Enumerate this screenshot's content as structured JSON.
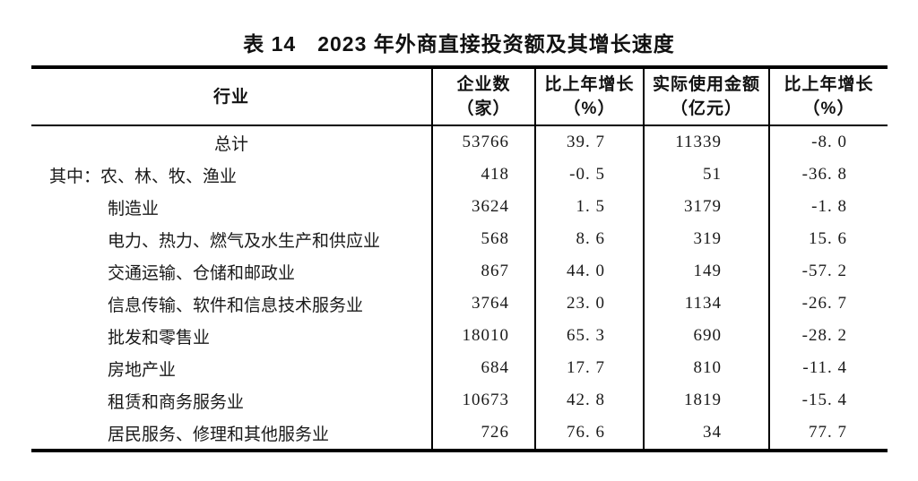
{
  "title": "表 14　2023 年外商直接投资额及其增长速度",
  "table": {
    "columns": [
      {
        "line1": "行业",
        "line2": ""
      },
      {
        "line1": "企业数",
        "line2": "（家）"
      },
      {
        "line1": "比上年增长",
        "line2": "（%）"
      },
      {
        "line1": "实际使用金额",
        "line2": "（亿元）"
      },
      {
        "line1": "比上年增长",
        "line2": "（%）"
      }
    ],
    "rows": [
      {
        "style": "total",
        "prefix": "",
        "industry": "总计",
        "values": [
          "53766",
          "39. 7",
          "11339",
          "-8. 0"
        ]
      },
      {
        "style": "first",
        "prefix": "其中：",
        "industry": "农、林、牧、渔业",
        "values": [
          "418",
          "-0. 5",
          "51",
          "-36. 8"
        ]
      },
      {
        "style": "sub",
        "prefix": "",
        "industry": "制造业",
        "values": [
          "3624",
          "1. 5",
          "3179",
          "-1. 8"
        ]
      },
      {
        "style": "sub",
        "prefix": "",
        "industry": "电力、热力、燃气及水生产和供应业",
        "values": [
          "568",
          "8. 6",
          "319",
          "15. 6"
        ]
      },
      {
        "style": "sub",
        "prefix": "",
        "industry": "交通运输、仓储和邮政业",
        "values": [
          "867",
          "44. 0",
          "149",
          "-57. 2"
        ]
      },
      {
        "style": "sub",
        "prefix": "",
        "industry": "信息传输、软件和信息技术服务业",
        "values": [
          "3764",
          "23. 0",
          "1134",
          "-26. 7"
        ]
      },
      {
        "style": "sub",
        "prefix": "",
        "industry": "批发和零售业",
        "values": [
          "18010",
          "65. 3",
          "690",
          "-28. 2"
        ]
      },
      {
        "style": "sub",
        "prefix": "",
        "industry": "房地产业",
        "values": [
          "684",
          "17. 7",
          "810",
          "-11. 4"
        ]
      },
      {
        "style": "sub",
        "prefix": "",
        "industry": "租赁和商务服务业",
        "values": [
          "10673",
          "42. 8",
          "1819",
          "-15. 4"
        ]
      },
      {
        "style": "sub",
        "prefix": "",
        "industry": "居民服务、修理和其他服务业",
        "values": [
          "726",
          "76. 6",
          "34",
          "77. 7"
        ]
      }
    ]
  },
  "colors": {
    "text": "#1a1a1a",
    "rule": "#000000",
    "background": "#ffffff"
  }
}
